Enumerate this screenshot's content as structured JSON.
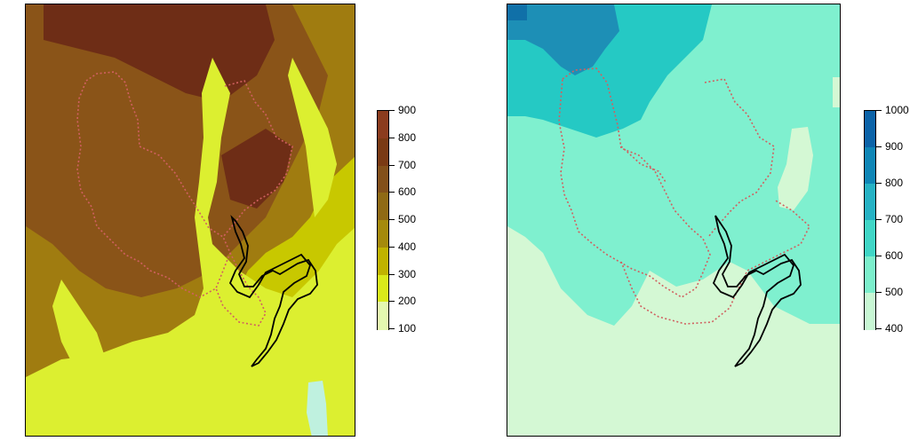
{
  "left_map": {
    "legend": {
      "labels": [
        "900",
        "800",
        "700",
        "600",
        "500",
        "400",
        "300",
        "200",
        "100"
      ],
      "colors": [
        "#8b3c1e",
        "#7a3a14",
        "#83501a",
        "#8f6a14",
        "#a58a0c",
        "#c0b300",
        "#d9ea1a",
        "#e4f8b0",
        "#c9f6ea"
      ]
    },
    "colors": {
      "high": "#6e2d16",
      "upper": "#8a5418",
      "mid": "#a07c10",
      "low": "#c8c800",
      "valley": "#dcef30",
      "lake": "#bff1df"
    }
  },
  "right_map": {
    "legend": {
      "labels": [
        "1000",
        "900",
        "800",
        "700",
        "600",
        "500",
        "400"
      ],
      "colors": [
        "#0c63a8",
        "#0f86b6",
        "#26b2c4",
        "#40d6c6",
        "#7cefcc",
        "#c8f7d4",
        "#f2fde4"
      ]
    },
    "colors": {
      "top": "#1d8fb6",
      "upper": "#25c9c4",
      "mid": "#7ff0cf",
      "low": "#d4f8d4"
    }
  },
  "boundaries": {
    "dotted_color": "#d06060",
    "solid_color": "#000000"
  }
}
